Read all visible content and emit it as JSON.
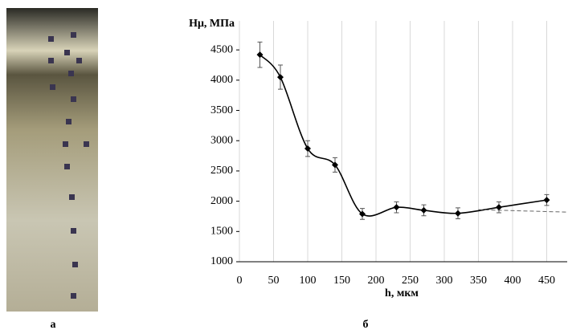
{
  "chart_data": {
    "type": "line",
    "y_label": "Hμ, МПа",
    "x_label": "h, мкм",
    "x": [
      30,
      60,
      100,
      140,
      180,
      230,
      270,
      320,
      380,
      450
    ],
    "series": [
      {
        "color": "#000000",
        "values": [
          4420,
          4050,
          2870,
          2600,
          1790,
          1900,
          1850,
          1800,
          1900,
          2020
        ],
        "errors": [
          210,
          200,
          130,
          120,
          90,
          90,
          90,
          90,
          90,
          90
        ]
      }
    ],
    "trend": {
      "x": [
        350,
        480
      ],
      "values": [
        1860,
        1820
      ],
      "color": "#666666"
    },
    "xlim": [
      0,
      480
    ],
    "xticks": [
      0,
      50,
      100,
      150,
      200,
      250,
      300,
      350,
      400,
      450
    ],
    "ylim": [
      1000,
      4900
    ],
    "yticks": [
      1000,
      1500,
      2000,
      2500,
      3000,
      3500,
      4000,
      4500
    ],
    "grid": "x"
  },
  "panel_labels": [
    "а",
    "б"
  ]
}
